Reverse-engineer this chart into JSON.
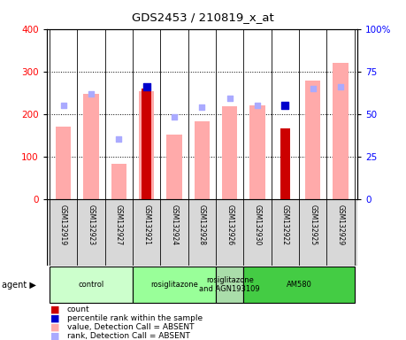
{
  "title": "GDS2453 / 210819_x_at",
  "samples": [
    "GSM132919",
    "GSM132923",
    "GSM132927",
    "GSM132921",
    "GSM132924",
    "GSM132928",
    "GSM132926",
    "GSM132930",
    "GSM132922",
    "GSM132925",
    "GSM132929"
  ],
  "count_values": [
    null,
    null,
    null,
    260,
    null,
    null,
    null,
    null,
    165,
    null,
    null
  ],
  "value_absent": [
    170,
    247,
    82,
    253,
    152,
    183,
    218,
    220,
    null,
    278,
    320
  ],
  "rank_absent_pct": [
    55,
    62,
    35,
    null,
    48,
    54,
    59,
    55,
    null,
    65,
    66
  ],
  "percentile_present_pct": [
    null,
    null,
    null,
    66,
    null,
    null,
    null,
    null,
    55,
    null,
    null
  ],
  "ylim_left": [
    0,
    400
  ],
  "ylim_right": [
    0,
    100
  ],
  "yticks_left": [
    0,
    100,
    200,
    300,
    400
  ],
  "yticks_right": [
    0,
    25,
    50,
    75,
    100
  ],
  "yticklabels_right": [
    "0",
    "25",
    "50",
    "75",
    "100%"
  ],
  "agent_groups": [
    {
      "label": "control",
      "start": 0,
      "end": 3,
      "color": "#ccffcc"
    },
    {
      "label": "rosiglitazone",
      "start": 3,
      "end": 6,
      "color": "#99ff99"
    },
    {
      "label": "rosiglitazone\nand AGN193109",
      "start": 6,
      "end": 7,
      "color": "#aaddaa"
    },
    {
      "label": "AM580",
      "start": 7,
      "end": 11,
      "color": "#44cc44"
    }
  ],
  "color_count": "#cc0000",
  "color_percentile": "#0000cc",
  "color_value_absent": "#ffaaaa",
  "color_rank_absent": "#aaaaff",
  "tick_bg": "#d8d8d8",
  "plot_bg": "#ffffff"
}
